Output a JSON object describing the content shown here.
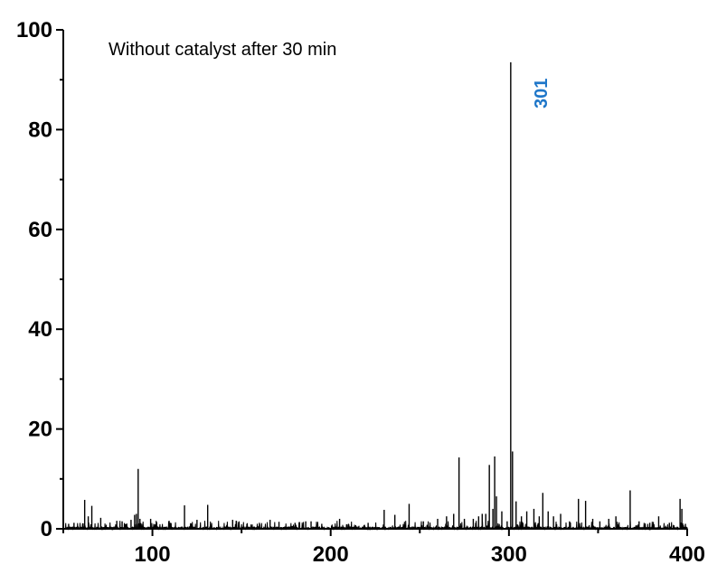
{
  "chart_data": {
    "type": "line",
    "title": "",
    "xlabel": "",
    "ylabel": "",
    "xlim": [
      50,
      400
    ],
    "ylim": [
      0,
      100
    ],
    "x_ticks": [
      100,
      200,
      300,
      400
    ],
    "y_ticks": [
      0,
      20,
      40,
      60,
      80,
      100
    ],
    "grid": false,
    "annotation": "Without catalyst after 30 min",
    "peak_label": {
      "text": "301",
      "x": 301,
      "color": "#1f77c9"
    },
    "series": [
      {
        "peaks": [
          [
            53,
            1.0
          ],
          [
            56,
            1.2
          ],
          [
            62,
            5.8
          ],
          [
            64,
            2.5
          ],
          [
            66,
            4.6
          ],
          [
            71,
            2.2
          ],
          [
            80,
            1.6
          ],
          [
            83,
            1.5
          ],
          [
            88,
            1.8
          ],
          [
            90,
            2.8
          ],
          [
            91,
            3.0
          ],
          [
            92,
            12.0
          ],
          [
            93,
            2.0
          ],
          [
            99,
            2.0
          ],
          [
            110,
            1.2
          ],
          [
            118,
            4.7
          ],
          [
            125,
            1.8
          ],
          [
            131,
            4.8
          ],
          [
            145,
            1.8
          ],
          [
            147,
            1.6
          ],
          [
            153,
            1.0
          ],
          [
            160,
            1.2
          ],
          [
            166,
            1.8
          ],
          [
            171,
            1.4
          ],
          [
            180,
            1.2
          ],
          [
            186,
            1.5
          ],
          [
            189,
            1.5
          ],
          [
            195,
            1.0
          ],
          [
            205,
            2.0
          ],
          [
            210,
            1.0
          ],
          [
            221,
            1.2
          ],
          [
            230,
            3.8
          ],
          [
            236,
            2.8
          ],
          [
            244,
            5.0
          ],
          [
            252,
            1.5
          ],
          [
            260,
            2.0
          ],
          [
            265,
            2.5
          ],
          [
            269,
            3.0
          ],
          [
            272,
            14.3
          ],
          [
            275,
            2.0
          ],
          [
            280,
            2.0
          ],
          [
            283,
            2.5
          ],
          [
            285,
            3.0
          ],
          [
            287,
            3.0
          ],
          [
            289,
            12.8
          ],
          [
            291,
            4.0
          ],
          [
            292,
            14.5
          ],
          [
            293,
            6.5
          ],
          [
            296,
            3.5
          ],
          [
            299,
            1.5
          ],
          [
            301,
            93.5
          ],
          [
            302,
            15.5
          ],
          [
            304,
            5.5
          ],
          [
            307,
            2.5
          ],
          [
            310,
            3.5
          ],
          [
            314,
            4.0
          ],
          [
            317,
            2.5
          ],
          [
            319,
            7.2
          ],
          [
            322,
            3.5
          ],
          [
            325,
            2.5
          ],
          [
            329,
            3.0
          ],
          [
            334,
            1.5
          ],
          [
            339,
            6.0
          ],
          [
            343,
            5.6
          ],
          [
            347,
            2.0
          ],
          [
            351,
            1.5
          ],
          [
            356,
            2.0
          ],
          [
            360,
            2.5
          ],
          [
            368,
            7.7
          ],
          [
            373,
            1.5
          ],
          [
            379,
            1.2
          ],
          [
            384,
            2.5
          ],
          [
            390,
            1.2
          ],
          [
            396,
            6.0
          ],
          [
            397,
            4.0
          ],
          [
            399,
            1.0
          ]
        ]
      }
    ]
  }
}
